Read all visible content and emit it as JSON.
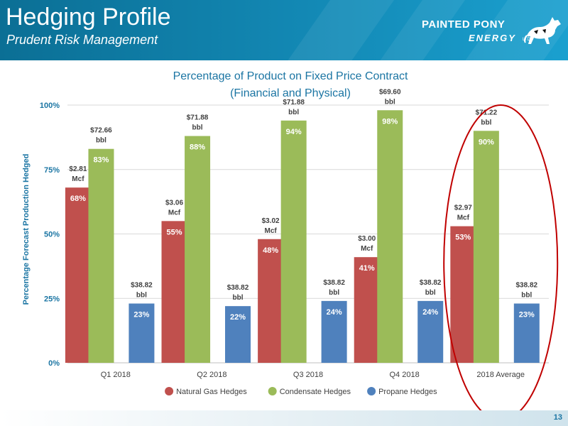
{
  "header": {
    "title": "Hedging Profile",
    "subtitle": "Prudent Risk Management",
    "logo_line1": "PAINTED PONY",
    "logo_line2": "ENERGY",
    "logo_suffix": "LTD"
  },
  "footer": {
    "page_number": "13"
  },
  "colors": {
    "header": "#1389b5",
    "natural_gas": "#c0504d",
    "condensate": "#9bbb59",
    "propane": "#4f81bd",
    "title_text": "#1b75a3",
    "highlight_ellipse": "#c00000"
  },
  "chart_data": {
    "type": "bar",
    "title_line1": "Percentage of Product on Fixed Price Contract",
    "title_line2": "(Financial and Physical)",
    "ylabel": "Percentage Forecast Production Hedged",
    "xlabel": "",
    "ylim": [
      0,
      100
    ],
    "yticks": [
      0,
      25,
      50,
      75,
      100
    ],
    "ytick_labels": [
      "0%",
      "25%",
      "50%",
      "75%",
      "100%"
    ],
    "grid": true,
    "legend_position": "bottom",
    "categories": [
      "Q1 2018",
      "Q2 2018",
      "Q3 2018",
      "Q4 2018",
      "2018 Average"
    ],
    "series": [
      {
        "name": "Natural Gas Hedges",
        "values": [
          68,
          55,
          48,
          41,
          53
        ],
        "value_labels": [
          "68%",
          "55%",
          "48%",
          "41%",
          "53%"
        ],
        "price_labels": [
          [
            "$2.81",
            "Mcf"
          ],
          [
            "$3.06",
            "Mcf"
          ],
          [
            "$3.02",
            "Mcf"
          ],
          [
            "$3.00",
            "Mcf"
          ],
          [
            "$2.97",
            "Mcf"
          ]
        ]
      },
      {
        "name": "Condensate Hedges",
        "values": [
          83,
          88,
          94,
          98,
          90
        ],
        "value_labels": [
          "83%",
          "88%",
          "94%",
          "98%",
          "90%"
        ],
        "price_labels": [
          [
            "$72.66",
            "bbl"
          ],
          [
            "$71.88",
            "bbl"
          ],
          [
            "$71.88",
            "bbl"
          ],
          [
            "$69.60",
            "bbl"
          ],
          [
            "$71.22",
            "bbl"
          ]
        ]
      },
      {
        "name": "Propane Hedges",
        "values": [
          23,
          22,
          24,
          24,
          23
        ],
        "value_labels": [
          "23%",
          "22%",
          "24%",
          "24%",
          "23%"
        ],
        "price_labels": [
          [
            "$38.82",
            "bbl"
          ],
          [
            "$38.82",
            "bbl"
          ],
          [
            "$38.82",
            "bbl"
          ],
          [
            "$38.82",
            "bbl"
          ],
          [
            "$38.82",
            "bbl"
          ]
        ]
      }
    ],
    "highlighted_category": "2018 Average"
  }
}
